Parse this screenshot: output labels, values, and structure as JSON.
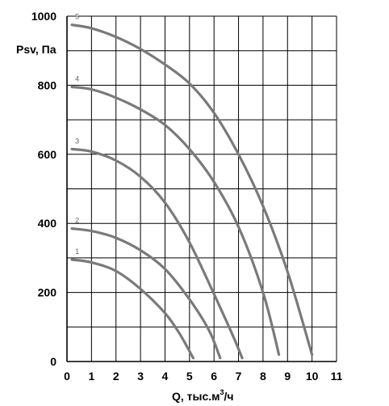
{
  "chart_data": {
    "type": "line",
    "xlabel": "Q, тыс.м",
    "xlabel_sup": "3",
    "xlabel_suffix": "/ч",
    "ylabel": "Psv, Па",
    "xlim": [
      0,
      11
    ],
    "ylim": [
      0,
      1000
    ],
    "x_ticks": [
      "0",
      "1",
      "2",
      "3",
      "4",
      "5",
      "6",
      "7",
      "8",
      "9",
      "10",
      "11"
    ],
    "y_ticks": [
      "0",
      "200",
      "400",
      "600",
      "800",
      "1000"
    ],
    "grid": true,
    "series": [
      {
        "name": "1",
        "x": [
          0.2,
          1.0,
          2.0,
          3.0,
          4.0,
          4.6,
          5.15
        ],
        "y": [
          295,
          287,
          262,
          210,
          140,
          80,
          10
        ]
      },
      {
        "name": "2",
        "x": [
          0.2,
          1.0,
          2.0,
          3.0,
          4.0,
          5.0,
          5.8,
          6.25
        ],
        "y": [
          385,
          378,
          358,
          322,
          268,
          180,
          90,
          10
        ]
      },
      {
        "name": "3",
        "x": [
          0.2,
          1.0,
          2.0,
          3.0,
          4.0,
          5.0,
          6.0,
          6.8,
          7.15
        ],
        "y": [
          615,
          608,
          582,
          535,
          460,
          345,
          195,
          70,
          10
        ]
      },
      {
        "name": "4",
        "x": [
          0.2,
          1.0,
          2.0,
          3.0,
          4.0,
          5.0,
          6.0,
          7.0,
          8.0,
          8.65
        ],
        "y": [
          795,
          788,
          764,
          730,
          685,
          615,
          520,
          390,
          200,
          20
        ]
      },
      {
        "name": "5",
        "x": [
          0.2,
          1.0,
          2.0,
          3.0,
          4.0,
          5.0,
          6.0,
          7.0,
          8.0,
          9.0,
          10.0
        ],
        "y": [
          975,
          965,
          940,
          905,
          860,
          805,
          720,
          600,
          450,
          260,
          20
        ]
      }
    ]
  }
}
